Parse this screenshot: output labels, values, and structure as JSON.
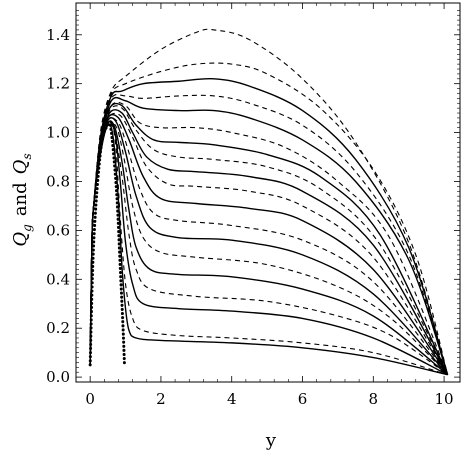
{
  "chart_data": {
    "type": "line",
    "xlabel": "y",
    "ylabel": "Q_g and Q_s",
    "ylabel_parts": {
      "q1": "Q",
      "sub1": "g",
      "mid": "and",
      "q2": "Q",
      "sub2": "s"
    },
    "xlim": [
      -0.4,
      10.45
    ],
    "ylim": [
      -0.02,
      1.53
    ],
    "x_ticks": [
      0,
      2,
      4,
      6,
      8,
      10
    ],
    "y_ticks": [
      0.0,
      0.2,
      0.4,
      0.6,
      0.8,
      1.0,
      1.2,
      1.4
    ],
    "x_tick_labels": [
      "0",
      "2",
      "4",
      "6",
      "8",
      "10"
    ],
    "y_tick_labels": [
      "0.0",
      "0.2",
      "0.4",
      "0.6",
      "0.8",
      "1.0",
      "1.2",
      "1.4"
    ],
    "grid": false,
    "legend": "none",
    "series": [
      {
        "style": "dotted",
        "points": [
          [
            0.0,
            0.05
          ],
          [
            0.1,
            0.55
          ],
          [
            0.3,
            0.93
          ],
          [
            0.5,
            1.03
          ],
          [
            0.6,
            1.0
          ],
          [
            0.75,
            0.75
          ],
          [
            0.85,
            0.45
          ],
          [
            0.93,
            0.2
          ],
          [
            0.97,
            0.05
          ]
        ]
      },
      {
        "style": "solid",
        "points": [
          [
            0.0,
            0.05
          ],
          [
            0.05,
            0.55
          ],
          [
            0.1,
            0.7
          ],
          [
            0.3,
            0.92
          ],
          [
            0.5,
            1.03
          ],
          [
            0.65,
            0.98
          ],
          [
            0.8,
            0.72
          ],
          [
            0.9,
            0.45
          ],
          [
            1.0,
            0.28
          ],
          [
            1.1,
            0.19
          ],
          [
            1.3,
            0.16
          ],
          [
            2,
            0.15
          ],
          [
            4,
            0.14
          ],
          [
            6,
            0.12
          ],
          [
            8,
            0.08
          ],
          [
            10.1,
            0.01
          ]
        ]
      },
      {
        "style": "dashed",
        "points": [
          [
            0.0,
            0.05
          ],
          [
            0.05,
            0.55
          ],
          [
            0.1,
            0.7
          ],
          [
            0.3,
            0.92
          ],
          [
            0.5,
            1.03
          ],
          [
            0.7,
            0.98
          ],
          [
            0.85,
            0.65
          ],
          [
            1.0,
            0.38
          ],
          [
            1.2,
            0.24
          ],
          [
            1.5,
            0.19
          ],
          [
            2.5,
            0.17
          ],
          [
            4,
            0.16
          ],
          [
            6,
            0.14
          ],
          [
            8,
            0.1
          ],
          [
            10.1,
            0.01
          ]
        ]
      },
      {
        "style": "solid",
        "points": [
          [
            0.0,
            0.05
          ],
          [
            0.05,
            0.55
          ],
          [
            0.1,
            0.7
          ],
          [
            0.3,
            0.93
          ],
          [
            0.5,
            1.04
          ],
          [
            0.7,
            1.0
          ],
          [
            0.85,
            0.8
          ],
          [
            1.0,
            0.55
          ],
          [
            1.2,
            0.38
          ],
          [
            1.5,
            0.3
          ],
          [
            2.5,
            0.28
          ],
          [
            4,
            0.27
          ],
          [
            6,
            0.24
          ],
          [
            8,
            0.16
          ],
          [
            10.1,
            0.01
          ]
        ]
      },
      {
        "style": "dashed",
        "points": [
          [
            0.0,
            0.05
          ],
          [
            0.05,
            0.55
          ],
          [
            0.1,
            0.7
          ],
          [
            0.3,
            0.93
          ],
          [
            0.5,
            1.04
          ],
          [
            0.7,
            1.0
          ],
          [
            0.9,
            0.82
          ],
          [
            1.1,
            0.58
          ],
          [
            1.3,
            0.44
          ],
          [
            1.7,
            0.36
          ],
          [
            3,
            0.33
          ],
          [
            5,
            0.31
          ],
          [
            7,
            0.25
          ],
          [
            8.5,
            0.17
          ],
          [
            10.1,
            0.01
          ]
        ]
      },
      {
        "style": "solid",
        "points": [
          [
            0.0,
            0.05
          ],
          [
            0.05,
            0.55
          ],
          [
            0.1,
            0.7
          ],
          [
            0.3,
            0.93
          ],
          [
            0.5,
            1.04
          ],
          [
            0.7,
            1.02
          ],
          [
            0.9,
            0.88
          ],
          [
            1.1,
            0.68
          ],
          [
            1.3,
            0.53
          ],
          [
            1.7,
            0.44
          ],
          [
            2.5,
            0.42
          ],
          [
            4,
            0.41
          ],
          [
            6,
            0.36
          ],
          [
            8,
            0.25
          ],
          [
            10.1,
            0.01
          ]
        ]
      },
      {
        "style": "dashed",
        "points": [
          [
            0.0,
            0.05
          ],
          [
            0.05,
            0.55
          ],
          [
            0.1,
            0.7
          ],
          [
            0.3,
            0.93
          ],
          [
            0.5,
            1.04
          ],
          [
            0.75,
            1.02
          ],
          [
            0.95,
            0.9
          ],
          [
            1.2,
            0.7
          ],
          [
            1.5,
            0.57
          ],
          [
            2,
            0.51
          ],
          [
            3,
            0.49
          ],
          [
            5,
            0.46
          ],
          [
            7,
            0.37
          ],
          [
            8.5,
            0.24
          ],
          [
            10.1,
            0.01
          ]
        ]
      },
      {
        "style": "solid",
        "points": [
          [
            0.0,
            0.05
          ],
          [
            0.05,
            0.55
          ],
          [
            0.1,
            0.7
          ],
          [
            0.3,
            0.93
          ],
          [
            0.5,
            1.05
          ],
          [
            0.75,
            1.04
          ],
          [
            1.0,
            0.92
          ],
          [
            1.3,
            0.74
          ],
          [
            1.7,
            0.61
          ],
          [
            2.5,
            0.57
          ],
          [
            4,
            0.56
          ],
          [
            6,
            0.5
          ],
          [
            8,
            0.34
          ],
          [
            10.1,
            0.01
          ]
        ]
      },
      {
        "style": "dashed",
        "points": [
          [
            0.0,
            0.05
          ],
          [
            0.05,
            0.55
          ],
          [
            0.1,
            0.7
          ],
          [
            0.3,
            0.93
          ],
          [
            0.5,
            1.05
          ],
          [
            0.8,
            1.04
          ],
          [
            1.05,
            0.94
          ],
          [
            1.4,
            0.77
          ],
          [
            1.8,
            0.67
          ],
          [
            2.5,
            0.64
          ],
          [
            4,
            0.62
          ],
          [
            6,
            0.56
          ],
          [
            8,
            0.39
          ],
          [
            10.1,
            0.01
          ]
        ]
      },
      {
        "style": "solid",
        "points": [
          [
            0.0,
            0.05
          ],
          [
            0.05,
            0.55
          ],
          [
            0.1,
            0.7
          ],
          [
            0.3,
            0.94
          ],
          [
            0.5,
            1.06
          ],
          [
            0.8,
            1.06
          ],
          [
            1.1,
            0.97
          ],
          [
            1.5,
            0.82
          ],
          [
            2,
            0.73
          ],
          [
            3,
            0.71
          ],
          [
            4.5,
            0.69
          ],
          [
            6,
            0.64
          ],
          [
            8,
            0.44
          ],
          [
            10.1,
            0.01
          ]
        ]
      },
      {
        "style": "dashed",
        "points": [
          [
            0.0,
            0.05
          ],
          [
            0.05,
            0.55
          ],
          [
            0.1,
            0.7
          ],
          [
            0.3,
            0.94
          ],
          [
            0.5,
            1.06
          ],
          [
            0.85,
            1.07
          ],
          [
            1.2,
            0.98
          ],
          [
            1.6,
            0.86
          ],
          [
            2.2,
            0.79
          ],
          [
            3,
            0.78
          ],
          [
            4.5,
            0.76
          ],
          [
            6,
            0.7
          ],
          [
            8,
            0.49
          ],
          [
            10.1,
            0.01
          ]
        ]
      },
      {
        "style": "solid",
        "points": [
          [
            0.0,
            0.05
          ],
          [
            0.05,
            0.55
          ],
          [
            0.1,
            0.7
          ],
          [
            0.3,
            0.95
          ],
          [
            0.55,
            1.08
          ],
          [
            0.9,
            1.08
          ],
          [
            1.2,
            1.0
          ],
          [
            1.6,
            0.9
          ],
          [
            2.2,
            0.85
          ],
          [
            3,
            0.84
          ],
          [
            4.5,
            0.82
          ],
          [
            6,
            0.76
          ],
          [
            8,
            0.54
          ],
          [
            10.1,
            0.01
          ]
        ]
      },
      {
        "style": "dashed",
        "points": [
          [
            0.0,
            0.05
          ],
          [
            0.05,
            0.55
          ],
          [
            0.1,
            0.7
          ],
          [
            0.3,
            0.95
          ],
          [
            0.55,
            1.09
          ],
          [
            0.9,
            1.1
          ],
          [
            1.3,
            1.01
          ],
          [
            1.8,
            0.93
          ],
          [
            2.5,
            0.9
          ],
          [
            3.5,
            0.89
          ],
          [
            5,
            0.86
          ],
          [
            6.5,
            0.77
          ],
          [
            8.2,
            0.54
          ],
          [
            10.1,
            0.01
          ]
        ]
      },
      {
        "style": "solid",
        "points": [
          [
            0.0,
            0.05
          ],
          [
            0.05,
            0.55
          ],
          [
            0.1,
            0.7
          ],
          [
            0.3,
            0.96
          ],
          [
            0.55,
            1.1
          ],
          [
            0.9,
            1.11
          ],
          [
            1.3,
            1.03
          ],
          [
            1.8,
            0.97
          ],
          [
            2.5,
            0.96
          ],
          [
            3.5,
            0.95
          ],
          [
            5,
            0.91
          ],
          [
            6.5,
            0.82
          ],
          [
            8.2,
            0.58
          ],
          [
            10.1,
            0.01
          ]
        ]
      },
      {
        "style": "dashed",
        "points": [
          [
            0.0,
            0.05
          ],
          [
            0.05,
            0.55
          ],
          [
            0.1,
            0.7
          ],
          [
            0.3,
            0.96
          ],
          [
            0.6,
            1.11
          ],
          [
            1.0,
            1.11
          ],
          [
            1.4,
            1.04
          ],
          [
            2,
            1.02
          ],
          [
            3,
            1.02
          ],
          [
            4,
            1.0
          ],
          [
            5.5,
            0.94
          ],
          [
            7,
            0.8
          ],
          [
            8.5,
            0.56
          ],
          [
            10.1,
            0.01
          ]
        ]
      },
      {
        "style": "solid",
        "points": [
          [
            0.0,
            0.05
          ],
          [
            0.05,
            0.55
          ],
          [
            0.1,
            0.7
          ],
          [
            0.3,
            0.97
          ],
          [
            0.6,
            1.13
          ],
          [
            1.0,
            1.13
          ],
          [
            1.5,
            1.1
          ],
          [
            2.5,
            1.09
          ],
          [
            3.5,
            1.09
          ],
          [
            4.5,
            1.06
          ],
          [
            6,
            0.97
          ],
          [
            7.5,
            0.8
          ],
          [
            9,
            0.48
          ],
          [
            10.1,
            0.01
          ]
        ]
      },
      {
        "style": "dashed",
        "points": [
          [
            0.0,
            0.05
          ],
          [
            0.05,
            0.55
          ],
          [
            0.1,
            0.7
          ],
          [
            0.3,
            0.98
          ],
          [
            0.6,
            1.14
          ],
          [
            1.0,
            1.15
          ],
          [
            1.5,
            1.14
          ],
          [
            2.5,
            1.15
          ],
          [
            3.5,
            1.15
          ],
          [
            4.5,
            1.12
          ],
          [
            6,
            1.03
          ],
          [
            7.5,
            0.84
          ],
          [
            9,
            0.5
          ],
          [
            10.1,
            0.01
          ]
        ]
      },
      {
        "style": "solid",
        "points": [
          [
            0.0,
            0.05
          ],
          [
            0.05,
            0.55
          ],
          [
            0.1,
            0.7
          ],
          [
            0.3,
            0.99
          ],
          [
            0.6,
            1.15
          ],
          [
            0.9,
            1.17
          ],
          [
            1.5,
            1.2
          ],
          [
            2.5,
            1.21
          ],
          [
            3.5,
            1.22
          ],
          [
            4.5,
            1.19
          ],
          [
            6,
            1.09
          ],
          [
            7.5,
            0.89
          ],
          [
            9,
            0.53
          ],
          [
            10.1,
            0.01
          ]
        ]
      },
      {
        "style": "dashed",
        "points": [
          [
            0.0,
            0.05
          ],
          [
            0.05,
            0.55
          ],
          [
            0.1,
            0.7
          ],
          [
            0.3,
            1.0
          ],
          [
            0.6,
            1.16
          ],
          [
            1.0,
            1.2
          ],
          [
            2,
            1.25
          ],
          [
            3,
            1.28
          ],
          [
            4,
            1.28
          ],
          [
            5,
            1.24
          ],
          [
            6.5,
            1.1
          ],
          [
            8,
            0.85
          ],
          [
            9.2,
            0.5
          ],
          [
            10.1,
            0.01
          ]
        ]
      },
      {
        "style": "dashed",
        "points": [
          [
            0.0,
            0.05
          ],
          [
            0.05,
            0.55
          ],
          [
            0.1,
            0.7
          ],
          [
            0.3,
            1.01
          ],
          [
            0.6,
            1.17
          ],
          [
            1.0,
            1.23
          ],
          [
            2,
            1.34
          ],
          [
            3,
            1.41
          ],
          [
            3.5,
            1.42
          ],
          [
            4.5,
            1.38
          ],
          [
            6,
            1.22
          ],
          [
            7.5,
            0.96
          ],
          [
            9,
            0.55
          ],
          [
            10.1,
            0.01
          ]
        ]
      }
    ]
  }
}
